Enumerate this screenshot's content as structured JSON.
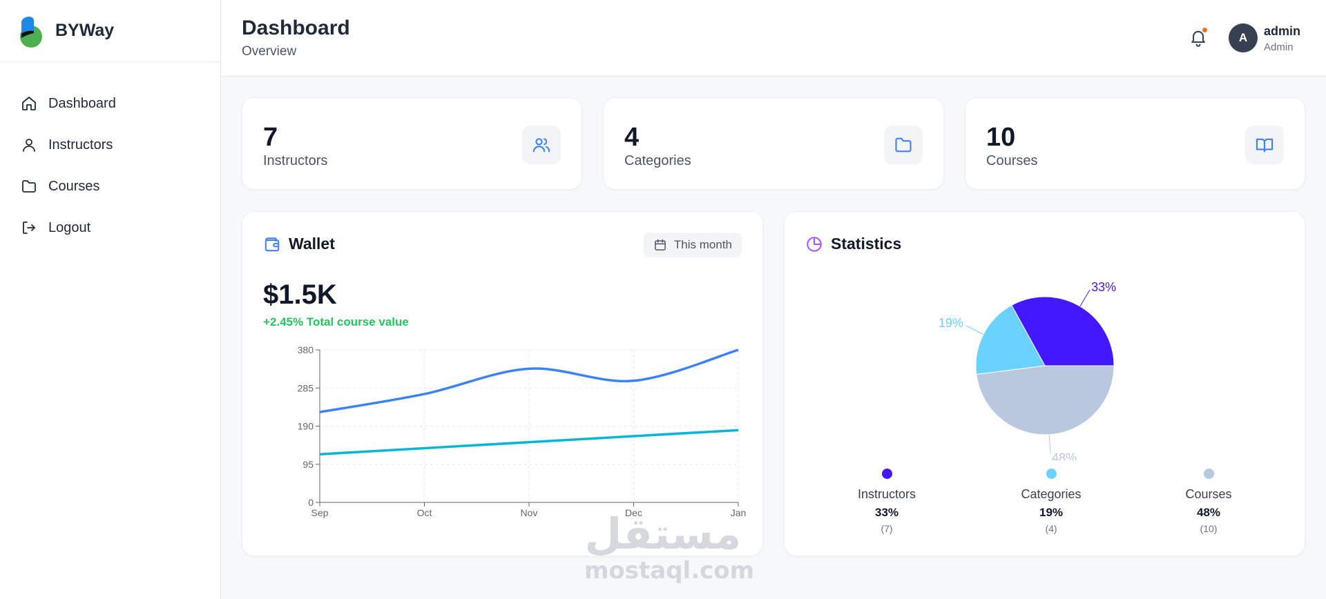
{
  "brand": {
    "name": "BYWay"
  },
  "sidebar": {
    "items": [
      {
        "label": "Dashboard",
        "icon": "home-icon"
      },
      {
        "label": "Instructors",
        "icon": "user-icon"
      },
      {
        "label": "Courses",
        "icon": "folder-icon"
      },
      {
        "label": "Logout",
        "icon": "logout-icon"
      }
    ]
  },
  "header": {
    "title": "Dashboard",
    "subtitle": "Overview",
    "notification_dot_color": "#f97316",
    "user": {
      "initial": "A",
      "name": "admin",
      "role": "Admin"
    }
  },
  "stats": [
    {
      "value": "7",
      "label": "Instructors",
      "icon": "users-icon"
    },
    {
      "value": "4",
      "label": "Categories",
      "icon": "folder-icon"
    },
    {
      "value": "10",
      "label": "Courses",
      "icon": "book-open-icon"
    }
  ],
  "wallet": {
    "title": "Wallet",
    "period": "This month",
    "amount": "$1.5K",
    "change": "+2.45% Total course value"
  },
  "statistics": {
    "title": "Statistics",
    "legend": [
      {
        "name": "Instructors",
        "percent": "33%",
        "count": "(7)",
        "color": "#4318ff"
      },
      {
        "name": "Categories",
        "percent": "19%",
        "count": "(4)",
        "color": "#6ad2ff"
      },
      {
        "name": "Courses",
        "percent": "48%",
        "count": "(10)",
        "color": "#b9c7df"
      }
    ]
  },
  "watermark": {
    "arabic": "مستقل",
    "latin": "mostaql.com"
  },
  "chart_data": [
    {
      "type": "line",
      "categories": [
        "Sep",
        "Oct",
        "Nov",
        "Dec",
        "Jan"
      ],
      "ylim": [
        0,
        380
      ],
      "yticks": [
        0,
        95,
        190,
        285,
        380
      ],
      "grid": true,
      "series": [
        {
          "values": [
            225,
            270,
            333,
            303,
            380
          ],
          "color": "#3b82f6",
          "smooth": true
        },
        {
          "values": [
            120,
            135,
            150,
            165,
            180
          ],
          "color": "#06b6d4",
          "smooth": false
        }
      ]
    },
    {
      "type": "pie",
      "slices": [
        {
          "label": "Instructors",
          "value": 33,
          "display": "33%",
          "color": "#4318ff"
        },
        {
          "label": "Categories",
          "value": 19,
          "display": "19%",
          "color": "#6ad2ff"
        },
        {
          "label": "Courses",
          "value": 48,
          "display": "48%",
          "color": "#b9c7df"
        }
      ]
    }
  ]
}
